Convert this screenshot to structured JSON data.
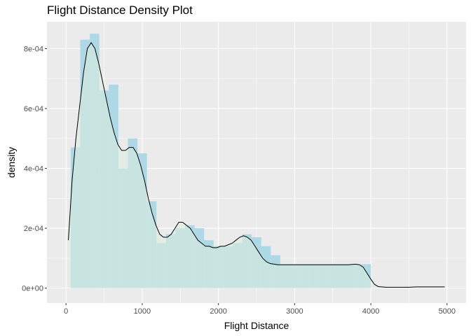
{
  "colors": {
    "panel_background": "#ebebeb",
    "grid_major": "#ffffff",
    "histogram_fill": "#add8e6",
    "density_fill": "#ddeedd",
    "density_line": "#000000",
    "tick_text": "#4d4d4d"
  },
  "chart_data": {
    "type": "area",
    "title": "Flight Distance Density Plot",
    "xlabel": "Flight Distance",
    "ylabel": "density",
    "xlim": [
      -250,
      5250
    ],
    "ylim": [
      -5e-05,
      0.00089
    ],
    "x_ticks": [
      0,
      1000,
      2000,
      3000,
      4000,
      5000
    ],
    "x_tick_labels": [
      "0",
      "1000",
      "2000",
      "3000",
      "4000",
      "5000"
    ],
    "y_ticks": [
      0,
      0.0002,
      0.0004,
      0.0006,
      0.0008
    ],
    "y_tick_labels": [
      "0e+00",
      "2e-04",
      "4e-04",
      "6e-04",
      "8e-04"
    ],
    "grid": true,
    "legend": "none",
    "histogram": {
      "bin_width": 125,
      "bins": [
        {
          "start": 62,
          "end": 187,
          "value": 0.00047
        },
        {
          "start": 187,
          "end": 312,
          "value": 0.00083
        },
        {
          "start": 312,
          "end": 437,
          "value": 0.00085
        },
        {
          "start": 437,
          "end": 562,
          "value": 0.00066
        },
        {
          "start": 562,
          "end": 687,
          "value": 0.00068
        },
        {
          "start": 687,
          "end": 812,
          "value": 0.0004
        },
        {
          "start": 812,
          "end": 937,
          "value": 0.0005
        },
        {
          "start": 937,
          "end": 1062,
          "value": 0.00045
        },
        {
          "start": 1062,
          "end": 1187,
          "value": 0.00029
        },
        {
          "start": 1187,
          "end": 1312,
          "value": 0.00015
        },
        {
          "start": 1312,
          "end": 1437,
          "value": 0.00018
        },
        {
          "start": 1437,
          "end": 1562,
          "value": 0.0002
        },
        {
          "start": 1562,
          "end": 1687,
          "value": 0.00021
        },
        {
          "start": 1687,
          "end": 1812,
          "value": 0.0002
        },
        {
          "start": 1812,
          "end": 1937,
          "value": 0.00016
        },
        {
          "start": 1937,
          "end": 2062,
          "value": 0.00014
        },
        {
          "start": 2062,
          "end": 2187,
          "value": 0.00014
        },
        {
          "start": 2187,
          "end": 2312,
          "value": 0.00015
        },
        {
          "start": 2312,
          "end": 2437,
          "value": 0.00018
        },
        {
          "start": 2437,
          "end": 2562,
          "value": 0.00017
        },
        {
          "start": 2562,
          "end": 2687,
          "value": 0.00014
        },
        {
          "start": 2687,
          "end": 2812,
          "value": 0.00011
        },
        {
          "start": 2812,
          "end": 2937,
          "value": 8e-05
        },
        {
          "start": 2937,
          "end": 3062,
          "value": 8e-05
        },
        {
          "start": 3062,
          "end": 3187,
          "value": 8e-05
        },
        {
          "start": 3187,
          "end": 3312,
          "value": 8e-05
        },
        {
          "start": 3312,
          "end": 3437,
          "value": 8e-05
        },
        {
          "start": 3437,
          "end": 3562,
          "value": 8e-05
        },
        {
          "start": 3562,
          "end": 3687,
          "value": 8e-05
        },
        {
          "start": 3687,
          "end": 3812,
          "value": 8e-05
        },
        {
          "start": 3812,
          "end": 3937,
          "value": 8e-05
        },
        {
          "start": 3937,
          "end": 4000,
          "value": 8e-05
        }
      ]
    },
    "density_curve": {
      "x": [
        31,
        80,
        130,
        180,
        230,
        280,
        330,
        380,
        430,
        480,
        530,
        580,
        630,
        680,
        730,
        780,
        830,
        880,
        930,
        980,
        1030,
        1080,
        1130,
        1180,
        1230,
        1280,
        1330,
        1380,
        1430,
        1480,
        1530,
        1580,
        1630,
        1680,
        1730,
        1780,
        1830,
        1880,
        1930,
        1980,
        2030,
        2080,
        2130,
        2180,
        2230,
        2280,
        2330,
        2380,
        2430,
        2480,
        2530,
        2580,
        2630,
        2680,
        2730,
        2780,
        2830,
        2880,
        2930,
        3000,
        3100,
        3200,
        3300,
        3400,
        3500,
        3600,
        3700,
        3800,
        3850,
        3900,
        3950,
        4000,
        4050,
        4100,
        4200,
        4300,
        4400,
        4500,
        4600,
        4700,
        4800,
        4900,
        4969
      ],
      "y": [
        0.00016,
        0.00036,
        0.0005,
        0.00061,
        0.00072,
        0.0008,
        0.00082,
        0.0008,
        0.00075,
        0.00069,
        0.00063,
        0.00057,
        0.00052,
        0.00048,
        0.00046,
        0.00046,
        0.00047,
        0.00047,
        0.00045,
        0.00041,
        0.00036,
        0.0003,
        0.00025,
        0.00021,
        0.00018,
        0.00017,
        0.00017,
        0.00018,
        0.0002,
        0.00022,
        0.00022,
        0.00021,
        0.0002,
        0.00018,
        0.00016,
        0.00015,
        0.00014,
        0.00014,
        0.000135,
        0.000135,
        0.00014,
        0.00014,
        0.000145,
        0.00015,
        0.00016,
        0.00017,
        0.000175,
        0.00017,
        0.00016,
        0.00014,
        0.00012,
        0.0001,
        8.8e-05,
        8.2e-05,
        8e-05,
        7.8e-05,
        7.8e-05,
        7.8e-05,
        7.8e-05,
        7.8e-05,
        7.8e-05,
        7.8e-05,
        7.8e-05,
        7.8e-05,
        7.8e-05,
        7.8e-05,
        7.8e-05,
        8e-05,
        7.8e-05,
        7e-05,
        5e-05,
        3e-05,
        1.2e-05,
        5e-06,
        3e-06,
        3e-06,
        3e-06,
        3e-06,
        4e-06,
        4e-06,
        4e-06,
        4e-06,
        4e-06
      ]
    }
  }
}
